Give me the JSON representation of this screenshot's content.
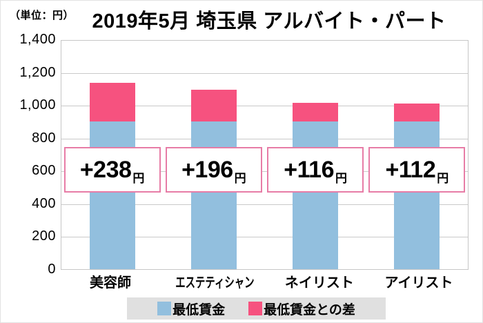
{
  "header": {
    "unit_label": "（単位：円）",
    "title": "2019年5月 埼玉県 アルバイト・パート"
  },
  "chart_data": {
    "type": "bar",
    "stacked": true,
    "title": "2019年5月 埼玉県 アルバイト・パート",
    "unit": "円",
    "categories": [
      "美容師",
      "エステティシャン",
      "ネイリスト",
      "アイリスト"
    ],
    "series": [
      {
        "name": "最低賃金",
        "color": "#92bfde",
        "values": [
          898,
          898,
          898,
          898
        ]
      },
      {
        "name": "最低賃金との差",
        "color": "#f6527f",
        "values": [
          238,
          196,
          116,
          112
        ]
      }
    ],
    "totals": [
      1136,
      1094,
      1014,
      1010
    ],
    "bar_labels": [
      "+238",
      "+196",
      "+116",
      "+112"
    ],
    "bar_label_unit": "円",
    "annotation_box_border": "#e77ca6",
    "xlabel": "",
    "ylabel": "（単位：円）",
    "ylim": [
      0,
      1400
    ],
    "ytick_step": 200,
    "ytick_labels": [
      "1,400",
      "1,200",
      "1,000",
      "800",
      "600",
      "400",
      "200",
      "0"
    ],
    "grid": true,
    "legend_position": "bottom"
  },
  "legend": {
    "items": [
      {
        "label": "最低賃金",
        "color": "#92bfde"
      },
      {
        "label": "最低賃金との差",
        "color": "#f6527f"
      }
    ]
  }
}
